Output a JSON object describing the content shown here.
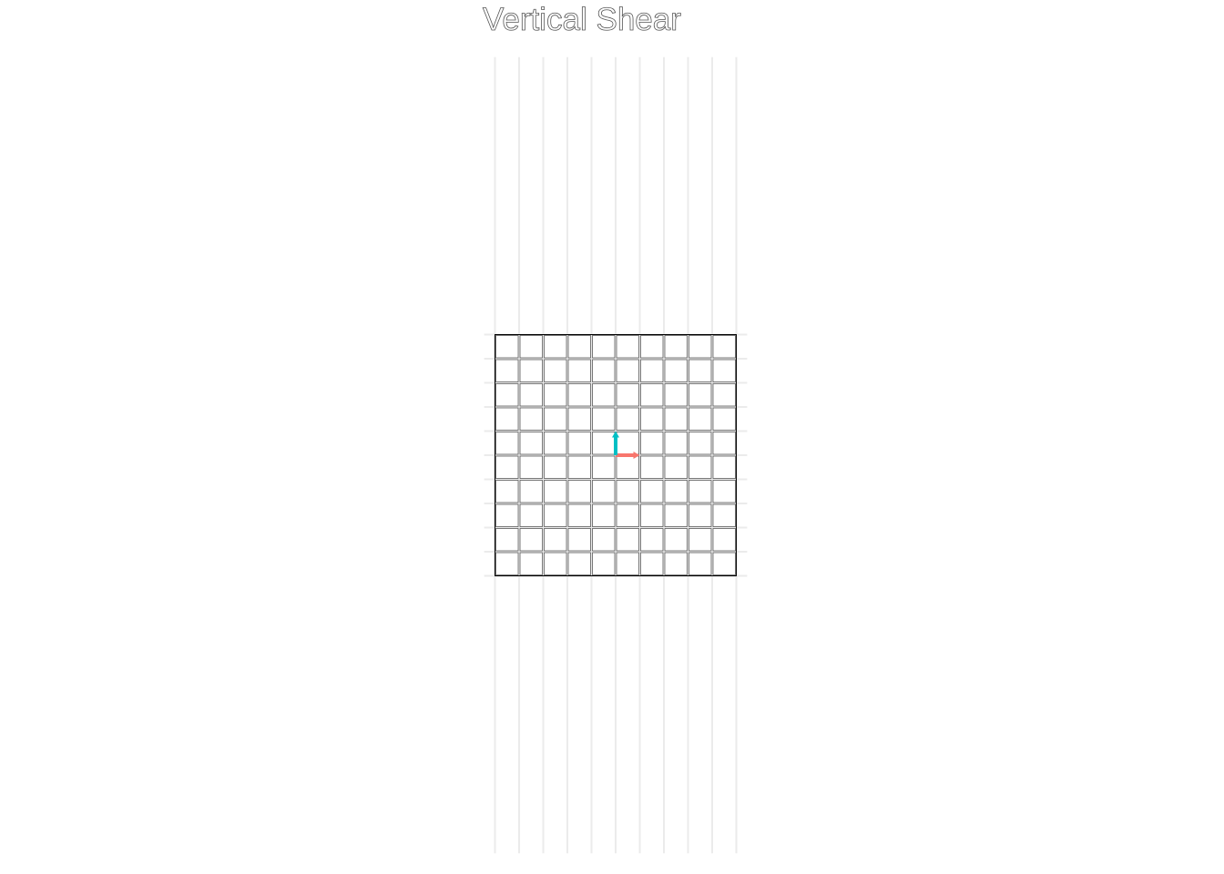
{
  "chart_data": {
    "type": "vector",
    "title": "Vertical Shear",
    "xlim": [
      -5.45,
      5.45
    ],
    "ylim": [
      -16.5,
      16.5
    ],
    "xticks": [
      -5,
      -4,
      -3,
      -2,
      -1,
      0,
      1,
      2,
      3,
      4,
      5
    ],
    "yticks": [
      -5,
      -4,
      -3,
      -2,
      -1,
      0,
      1,
      2,
      3,
      4,
      5
    ],
    "grid": true,
    "vectors": [
      {
        "color": "#f8766d",
        "x": 1,
        "y": 0
      },
      {
        "color": "#00bfc4",
        "x": 0,
        "y": 1
      }
    ]
  }
}
